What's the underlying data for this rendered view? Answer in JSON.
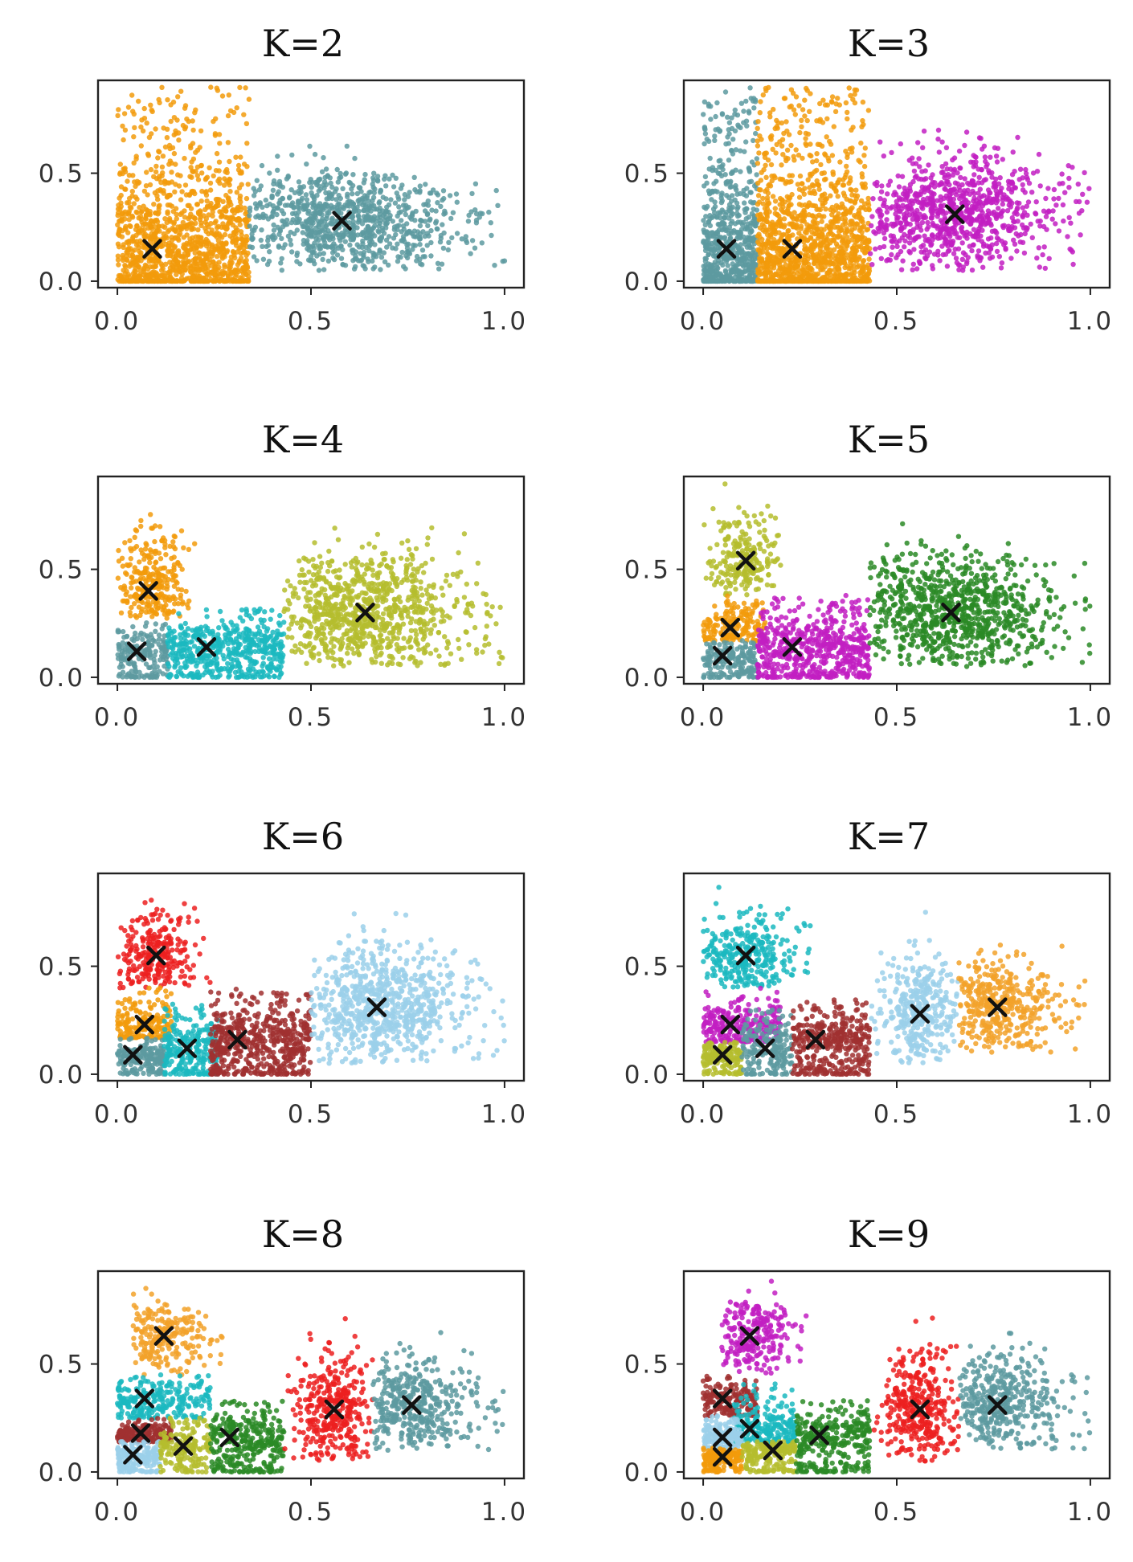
{
  "chart_data": [
    {
      "type": "scatter",
      "title": "K=2",
      "xlim": [
        -0.05,
        1.05
      ],
      "ylim": [
        -0.03,
        0.93
      ],
      "xticks": [
        "0.0",
        "0.5",
        "1.0"
      ],
      "yticks": [
        "0.0",
        "0.5"
      ],
      "clusters": [
        {
          "color": "#f29b0c",
          "x_range": [
            0.0,
            0.34
          ],
          "y_range": [
            0.0,
            0.9
          ],
          "centroid": [
            0.09,
            0.15
          ]
        },
        {
          "color": "#5d9aa0",
          "x_range": [
            0.34,
            1.0
          ],
          "y_range": [
            0.05,
            0.65
          ],
          "centroid": [
            0.58,
            0.28
          ]
        }
      ]
    },
    {
      "type": "scatter",
      "title": "K=3",
      "xlim": [
        -0.05,
        1.05
      ],
      "ylim": [
        -0.03,
        0.93
      ],
      "xticks": [
        "0.0",
        "0.5",
        "1.0"
      ],
      "yticks": [
        "0.0",
        "0.5"
      ],
      "clusters": [
        {
          "color": "#5d9aa0",
          "x_range": [
            0.0,
            0.14
          ],
          "y_range": [
            0.0,
            0.9
          ],
          "centroid": [
            0.06,
            0.15
          ]
        },
        {
          "color": "#f29b0c",
          "x_range": [
            0.14,
            0.43
          ],
          "y_range": [
            0.0,
            0.9
          ],
          "centroid": [
            0.23,
            0.15
          ]
        },
        {
          "color": "#c21fc2",
          "x_range": [
            0.43,
            1.0
          ],
          "y_range": [
            0.05,
            0.75
          ],
          "centroid": [
            0.65,
            0.31
          ]
        }
      ]
    },
    {
      "type": "scatter",
      "title": "K=4",
      "xlim": [
        -0.05,
        1.05
      ],
      "ylim": [
        -0.03,
        0.93
      ],
      "xticks": [
        "0.0",
        "0.5",
        "1.0"
      ],
      "yticks": [
        "0.0",
        "0.5"
      ],
      "clusters": [
        {
          "color": "#f29b0c",
          "x_range": [
            0.0,
            0.2
          ],
          "y_range": [
            0.27,
            0.9
          ],
          "centroid": [
            0.08,
            0.4
          ]
        },
        {
          "color": "#5d9aa0",
          "x_range": [
            0.0,
            0.13
          ],
          "y_range": [
            0.0,
            0.27
          ],
          "centroid": [
            0.05,
            0.12
          ]
        },
        {
          "color": "#1bb8c0",
          "x_range": [
            0.13,
            0.43
          ],
          "y_range": [
            0.0,
            0.32
          ],
          "centroid": [
            0.23,
            0.14
          ]
        },
        {
          "color": "#b5bd2e",
          "x_range": [
            0.43,
            1.0
          ],
          "y_range": [
            0.05,
            0.75
          ],
          "centroid": [
            0.64,
            0.3
          ]
        }
      ]
    },
    {
      "type": "scatter",
      "title": "K=5",
      "xlim": [
        -0.05,
        1.05
      ],
      "ylim": [
        -0.03,
        0.93
      ],
      "xticks": [
        "0.0",
        "0.5",
        "1.0"
      ],
      "yticks": [
        "0.0",
        "0.5"
      ],
      "clusters": [
        {
          "color": "#b5bd2e",
          "x_range": [
            0.0,
            0.2
          ],
          "y_range": [
            0.38,
            0.9
          ],
          "centroid": [
            0.11,
            0.54
          ]
        },
        {
          "color": "#f29b0c",
          "x_range": [
            0.0,
            0.16
          ],
          "y_range": [
            0.17,
            0.38
          ],
          "centroid": [
            0.07,
            0.23
          ]
        },
        {
          "color": "#5d9aa0",
          "x_range": [
            0.0,
            0.14
          ],
          "y_range": [
            0.0,
            0.17
          ],
          "centroid": [
            0.05,
            0.1
          ]
        },
        {
          "color": "#c21fc2",
          "x_range": [
            0.14,
            0.43
          ],
          "y_range": [
            0.0,
            0.38
          ],
          "centroid": [
            0.23,
            0.14
          ]
        },
        {
          "color": "#2a8a26",
          "x_range": [
            0.43,
            1.0
          ],
          "y_range": [
            0.05,
            0.75
          ],
          "centroid": [
            0.64,
            0.3
          ]
        }
      ]
    },
    {
      "type": "scatter",
      "title": "K=6",
      "xlim": [
        -0.05,
        1.05
      ],
      "ylim": [
        -0.03,
        0.93
      ],
      "xticks": [
        "0.0",
        "0.5",
        "1.0"
      ],
      "yticks": [
        "0.0",
        "0.5"
      ],
      "clusters": [
        {
          "color": "#ec2020",
          "x_range": [
            0.0,
            0.24
          ],
          "y_range": [
            0.4,
            0.9
          ],
          "centroid": [
            0.1,
            0.55
          ]
        },
        {
          "color": "#f29b0c",
          "x_range": [
            0.0,
            0.14
          ],
          "y_range": [
            0.17,
            0.4
          ],
          "centroid": [
            0.07,
            0.23
          ]
        },
        {
          "color": "#5d9aa0",
          "x_range": [
            0.0,
            0.12
          ],
          "y_range": [
            0.0,
            0.17
          ],
          "centroid": [
            0.04,
            0.09
          ]
        },
        {
          "color": "#1bb8c0",
          "x_range": [
            0.12,
            0.26
          ],
          "y_range": [
            0.0,
            0.34
          ],
          "centroid": [
            0.18,
            0.12
          ]
        },
        {
          "color": "#a03030",
          "x_range": [
            0.24,
            0.5
          ],
          "y_range": [
            0.0,
            0.4
          ],
          "centroid": [
            0.31,
            0.16
          ]
        },
        {
          "color": "#9bd0ea",
          "x_range": [
            0.5,
            1.0
          ],
          "y_range": [
            0.05,
            0.75
          ],
          "centroid": [
            0.67,
            0.31
          ]
        }
      ]
    },
    {
      "type": "scatter",
      "title": "K=7",
      "xlim": [
        -0.05,
        1.05
      ],
      "ylim": [
        -0.03,
        0.93
      ],
      "xticks": [
        "0.0",
        "0.5",
        "1.0"
      ],
      "yticks": [
        "0.0",
        "0.5"
      ],
      "clusters": [
        {
          "color": "#1bb8c0",
          "x_range": [
            0.0,
            0.28
          ],
          "y_range": [
            0.4,
            0.9
          ],
          "centroid": [
            0.11,
            0.55
          ]
        },
        {
          "color": "#c21fc2",
          "x_range": [
            0.0,
            0.2
          ],
          "y_range": [
            0.15,
            0.4
          ],
          "centroid": [
            0.07,
            0.23
          ]
        },
        {
          "color": "#b5bd2e",
          "x_range": [
            0.0,
            0.1
          ],
          "y_range": [
            0.0,
            0.15
          ],
          "centroid": [
            0.05,
            0.09
          ]
        },
        {
          "color": "#5d9aa0",
          "x_range": [
            0.1,
            0.23
          ],
          "y_range": [
            0.0,
            0.3
          ],
          "centroid": [
            0.16,
            0.12
          ]
        },
        {
          "color": "#a03030",
          "x_range": [
            0.23,
            0.43
          ],
          "y_range": [
            0.0,
            0.35
          ],
          "centroid": [
            0.29,
            0.16
          ]
        },
        {
          "color": "#9bd0ea",
          "x_range": [
            0.43,
            0.66
          ],
          "y_range": [
            0.05,
            0.75
          ],
          "centroid": [
            0.56,
            0.28
          ]
        },
        {
          "color": "#f2a22a",
          "x_range": [
            0.66,
            1.0
          ],
          "y_range": [
            0.1,
            0.65
          ],
          "centroid": [
            0.76,
            0.31
          ]
        }
      ]
    },
    {
      "type": "scatter",
      "title": "K=8",
      "xlim": [
        -0.05,
        1.05
      ],
      "ylim": [
        -0.03,
        0.93
      ],
      "xticks": [
        "0.0",
        "0.5",
        "1.0"
      ],
      "yticks": [
        "0.0",
        "0.5"
      ],
      "clusters": [
        {
          "color": "#f2a22a",
          "x_range": [
            0.04,
            0.28
          ],
          "y_range": [
            0.45,
            0.9
          ],
          "centroid": [
            0.12,
            0.63
          ]
        },
        {
          "color": "#1bb8c0",
          "x_range": [
            0.0,
            0.24
          ],
          "y_range": [
            0.25,
            0.45
          ],
          "centroid": [
            0.07,
            0.34
          ]
        },
        {
          "color": "#a03030",
          "x_range": [
            0.0,
            0.14
          ],
          "y_range": [
            0.14,
            0.25
          ],
          "centroid": [
            0.06,
            0.18
          ]
        },
        {
          "color": "#9bd0ea",
          "x_range": [
            0.0,
            0.11
          ],
          "y_range": [
            0.0,
            0.14
          ],
          "centroid": [
            0.04,
            0.08
          ]
        },
        {
          "color": "#b5bd2e",
          "x_range": [
            0.11,
            0.24
          ],
          "y_range": [
            0.0,
            0.25
          ],
          "centroid": [
            0.17,
            0.12
          ]
        },
        {
          "color": "#2a8a26",
          "x_range": [
            0.24,
            0.43
          ],
          "y_range": [
            0.0,
            0.33
          ],
          "centroid": [
            0.29,
            0.16
          ]
        },
        {
          "color": "#ec2020",
          "x_range": [
            0.43,
            0.66
          ],
          "y_range": [
            0.05,
            0.75
          ],
          "centroid": [
            0.56,
            0.29
          ]
        },
        {
          "color": "#5d9aa0",
          "x_range": [
            0.66,
            1.0
          ],
          "y_range": [
            0.1,
            0.65
          ],
          "centroid": [
            0.76,
            0.31
          ]
        }
      ]
    },
    {
      "type": "scatter",
      "title": "K=9",
      "xlim": [
        -0.05,
        1.05
      ],
      "ylim": [
        -0.03,
        0.93
      ],
      "xticks": [
        "0.0",
        "0.5",
        "1.0"
      ],
      "yticks": [
        "0.0",
        "0.5"
      ],
      "clusters": [
        {
          "color": "#c21fc2",
          "x_range": [
            0.04,
            0.28
          ],
          "y_range": [
            0.45,
            0.9
          ],
          "centroid": [
            0.12,
            0.63
          ]
        },
        {
          "color": "#a03030",
          "x_range": [
            0.0,
            0.14
          ],
          "y_range": [
            0.26,
            0.45
          ],
          "centroid": [
            0.05,
            0.34
          ]
        },
        {
          "color": "#1bb8c0",
          "x_range": [
            0.08,
            0.24
          ],
          "y_range": [
            0.14,
            0.42
          ],
          "centroid": [
            0.12,
            0.2
          ]
        },
        {
          "color": "#9bd0ea",
          "x_range": [
            0.0,
            0.1
          ],
          "y_range": [
            0.11,
            0.26
          ],
          "centroid": [
            0.05,
            0.16
          ]
        },
        {
          "color": "#f29b0c",
          "x_range": [
            0.0,
            0.1
          ],
          "y_range": [
            0.0,
            0.11
          ],
          "centroid": [
            0.05,
            0.07
          ]
        },
        {
          "color": "#b5bd2e",
          "x_range": [
            0.1,
            0.24
          ],
          "y_range": [
            0.0,
            0.14
          ],
          "centroid": [
            0.18,
            0.1
          ]
        },
        {
          "color": "#2a8a26",
          "x_range": [
            0.24,
            0.43
          ],
          "y_range": [
            0.0,
            0.33
          ],
          "centroid": [
            0.3,
            0.17
          ]
        },
        {
          "color": "#ec2020",
          "x_range": [
            0.43,
            0.66
          ],
          "y_range": [
            0.05,
            0.75
          ],
          "centroid": [
            0.56,
            0.29
          ]
        },
        {
          "color": "#5d9aa0",
          "x_range": [
            0.66,
            1.0
          ],
          "y_range": [
            0.1,
            0.65
          ],
          "centroid": [
            0.76,
            0.31
          ]
        }
      ]
    }
  ]
}
